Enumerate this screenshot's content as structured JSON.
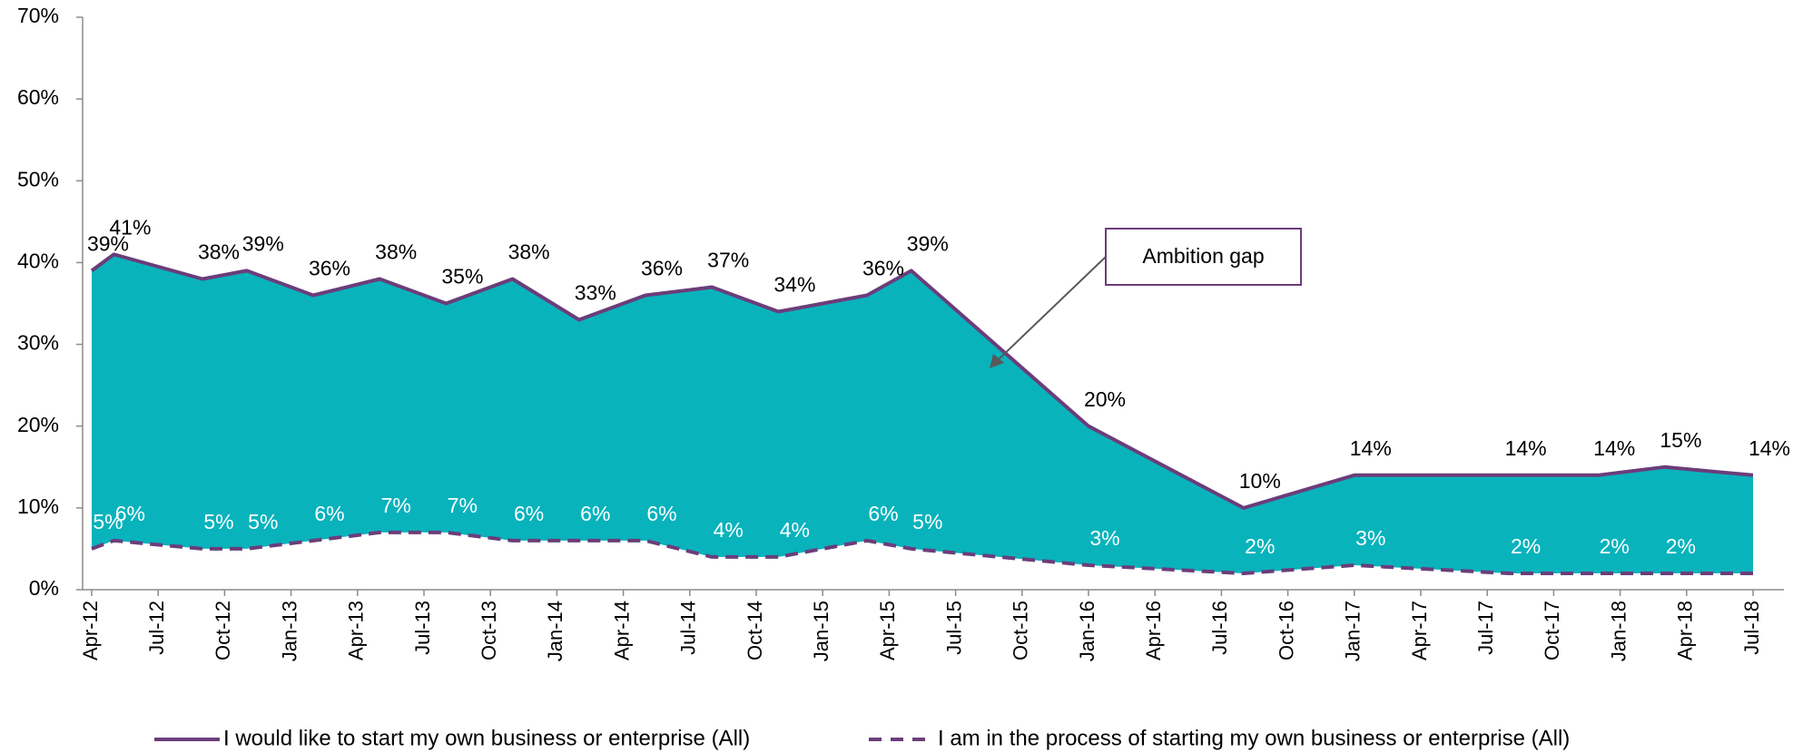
{
  "chart_data": {
    "type": "area-gap",
    "x": [
      "2012-04",
      "2012-05",
      "2012-09",
      "2012-11",
      "2013-02",
      "2013-05",
      "2013-08",
      "2013-11",
      "2014-02",
      "2014-05",
      "2014-08",
      "2014-11",
      "2015-03",
      "2015-05",
      "2016-01",
      "2016-08",
      "2017-01",
      "2017-08",
      "2017-12",
      "2018-03",
      "2018-07"
    ],
    "series": [
      {
        "name": "I would like to start my own business or enterprise (All)",
        "color": "#6b3d7a",
        "style": "solid",
        "values": [
          39,
          41,
          38,
          39,
          36,
          38,
          35,
          38,
          33,
          36,
          37,
          34,
          36,
          39,
          20,
          10,
          14,
          14,
          14,
          15,
          14
        ],
        "value_labels": [
          "39%",
          "41%",
          "38%",
          "39%",
          "36%",
          "38%",
          "35%",
          "38%",
          "33%",
          "36%",
          "37%",
          "34%",
          "36%",
          "39%",
          "20%",
          "10%",
          "14%",
          "14%",
          "14%",
          "15%",
          "14%"
        ]
      },
      {
        "name": "I am in the process of starting my own business or enterprise (All)",
        "color": "#6b3d7a",
        "style": "dashed",
        "values": [
          5,
          6,
          5,
          5,
          6,
          7,
          7,
          6,
          6,
          6,
          4,
          4,
          6,
          5,
          3,
          2,
          3,
          2,
          2,
          2,
          2
        ],
        "value_labels": [
          "5%",
          "6%",
          "5%",
          "5%",
          "6%",
          "7%",
          "7%",
          "6%",
          "6%",
          "6%",
          "4%",
          "4%",
          "6%",
          "5%",
          "3%",
          "2%",
          "3%",
          "2%",
          "2%",
          "2%",
          "2%"
        ]
      }
    ],
    "fill_color": "#08b3bc",
    "annotations": [
      {
        "text": "Ambition gap"
      }
    ],
    "xlim": [
      "2012-04",
      "2018-07"
    ],
    "xticks": [
      {
        "value": "2012-04",
        "label": "Apr-12"
      },
      {
        "value": "2012-07",
        "label": "Jul-12"
      },
      {
        "value": "2012-10",
        "label": "Oct-12"
      },
      {
        "value": "2013-01",
        "label": "Jan-13"
      },
      {
        "value": "2013-04",
        "label": "Apr-13"
      },
      {
        "value": "2013-07",
        "label": "Jul-13"
      },
      {
        "value": "2013-10",
        "label": "Oct-13"
      },
      {
        "value": "2014-01",
        "label": "Jan-14"
      },
      {
        "value": "2014-04",
        "label": "Apr-14"
      },
      {
        "value": "2014-07",
        "label": "Jul-14"
      },
      {
        "value": "2014-10",
        "label": "Oct-14"
      },
      {
        "value": "2015-01",
        "label": "Jan-15"
      },
      {
        "value": "2015-04",
        "label": "Apr-15"
      },
      {
        "value": "2015-07",
        "label": "Jul-15"
      },
      {
        "value": "2015-10",
        "label": "Oct-15"
      },
      {
        "value": "2016-01",
        "label": "Jan-16"
      },
      {
        "value": "2016-04",
        "label": "Apr-16"
      },
      {
        "value": "2016-07",
        "label": "Jul-16"
      },
      {
        "value": "2016-10",
        "label": "Oct-16"
      },
      {
        "value": "2017-01",
        "label": "Jan-17"
      },
      {
        "value": "2017-04",
        "label": "Apr-17"
      },
      {
        "value": "2017-07",
        "label": "Jul-17"
      },
      {
        "value": "2017-10",
        "label": "Oct-17"
      },
      {
        "value": "2018-01",
        "label": "Jan-18"
      },
      {
        "value": "2018-04",
        "label": "Apr-18"
      },
      {
        "value": "2018-07",
        "label": "Jul-18"
      }
    ],
    "ylim": [
      0,
      70
    ],
    "yticks": [
      {
        "value": 0,
        "label": "0%"
      },
      {
        "value": 10,
        "label": "10%"
      },
      {
        "value": 20,
        "label": "20%"
      },
      {
        "value": 30,
        "label": "30%"
      },
      {
        "value": 40,
        "label": "40%"
      },
      {
        "value": 50,
        "label": "50%"
      },
      {
        "value": 60,
        "label": "60%"
      },
      {
        "value": 70,
        "label": "70%"
      }
    ],
    "legend": "bottom"
  }
}
